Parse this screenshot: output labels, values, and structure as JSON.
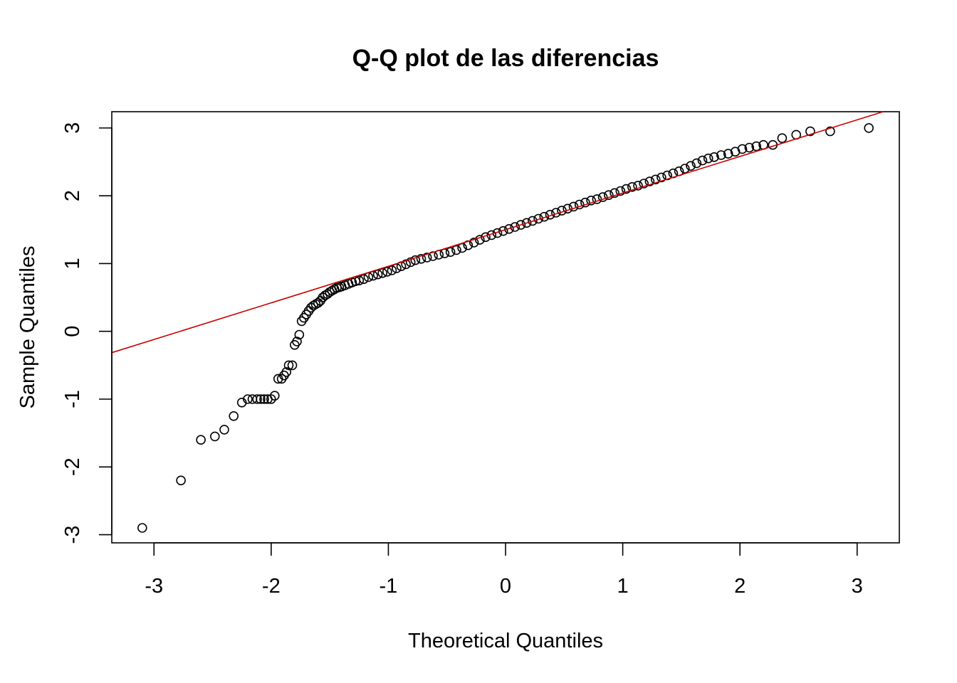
{
  "chart_data": {
    "type": "scatter",
    "title": "Q-Q plot de las diferencias",
    "xlabel": "Theoretical Quantiles",
    "ylabel": "Sample Quantiles",
    "xlim": [
      -3.36,
      3.36
    ],
    "ylim": [
      -3.12,
      3.24
    ],
    "xticks": [
      -3,
      -2,
      -1,
      0,
      1,
      2,
      3
    ],
    "xtick_labels": [
      "-3",
      "-2",
      "-1",
      "0",
      "1",
      "2",
      "3"
    ],
    "yticks": [
      -3,
      -2,
      -1,
      0,
      1,
      2,
      3
    ],
    "ytick_labels": [
      "-3",
      "-2",
      "-1",
      "0",
      "1",
      "2",
      "3"
    ],
    "grid": false,
    "point_color": "#000000",
    "line_color": "#cc0000",
    "reference_line": {
      "intercept": 1.5,
      "slope": 0.54
    },
    "points": [
      [
        -3.1,
        -2.9
      ],
      [
        -2.77,
        -2.2
      ],
      [
        -2.6,
        -1.6
      ],
      [
        -2.48,
        -1.55
      ],
      [
        -2.4,
        -1.45
      ],
      [
        -2.32,
        -1.25
      ],
      [
        -2.25,
        -1.05
      ],
      [
        -2.2,
        -1.0
      ],
      [
        -2.16,
        -1.0
      ],
      [
        -2.12,
        -1.0
      ],
      [
        -2.09,
        -1.0
      ],
      [
        -2.06,
        -1.0
      ],
      [
        -2.03,
        -1.0
      ],
      [
        -2.0,
        -1.0
      ],
      [
        -1.97,
        -0.95
      ],
      [
        -1.94,
        -0.7
      ],
      [
        -1.91,
        -0.7
      ],
      [
        -1.89,
        -0.65
      ],
      [
        -1.87,
        -0.6
      ],
      [
        -1.85,
        -0.5
      ],
      [
        -1.82,
        -0.5
      ],
      [
        -1.8,
        -0.2
      ],
      [
        -1.78,
        -0.15
      ],
      [
        -1.76,
        -0.05
      ],
      [
        -1.74,
        0.15
      ],
      [
        -1.72,
        0.2
      ],
      [
        -1.7,
        0.25
      ],
      [
        -1.68,
        0.3
      ],
      [
        -1.66,
        0.35
      ],
      [
        -1.64,
        0.38
      ],
      [
        -1.62,
        0.4
      ],
      [
        -1.6,
        0.42
      ],
      [
        -1.58,
        0.45
      ],
      [
        -1.56,
        0.5
      ],
      [
        -1.54,
        0.53
      ],
      [
        -1.52,
        0.55
      ],
      [
        -1.5,
        0.58
      ],
      [
        -1.48,
        0.6
      ],
      [
        -1.46,
        0.62
      ],
      [
        -1.44,
        0.64
      ],
      [
        -1.42,
        0.65
      ],
      [
        -1.4,
        0.66
      ],
      [
        -1.37,
        0.68
      ],
      [
        -1.34,
        0.7
      ],
      [
        -1.31,
        0.72
      ],
      [
        -1.28,
        0.74
      ],
      [
        -1.25,
        0.75
      ],
      [
        -1.21,
        0.77
      ],
      [
        -1.17,
        0.8
      ],
      [
        -1.13,
        0.82
      ],
      [
        -1.09,
        0.84
      ],
      [
        -1.05,
        0.86
      ],
      [
        -1.01,
        0.88
      ],
      [
        -0.97,
        0.9
      ],
      [
        -0.93,
        0.93
      ],
      [
        -0.89,
        0.96
      ],
      [
        -0.85,
        0.99
      ],
      [
        -0.81,
        1.02
      ],
      [
        -0.77,
        1.05
      ],
      [
        -0.72,
        1.07
      ],
      [
        -0.67,
        1.09
      ],
      [
        -0.62,
        1.11
      ],
      [
        -0.57,
        1.13
      ],
      [
        -0.52,
        1.15
      ],
      [
        -0.47,
        1.17
      ],
      [
        -0.42,
        1.2
      ],
      [
        -0.37,
        1.23
      ],
      [
        -0.32,
        1.27
      ],
      [
        -0.27,
        1.31
      ],
      [
        -0.22,
        1.35
      ],
      [
        -0.17,
        1.39
      ],
      [
        -0.12,
        1.42
      ],
      [
        -0.07,
        1.45
      ],
      [
        -0.02,
        1.48
      ],
      [
        0.03,
        1.51
      ],
      [
        0.08,
        1.54
      ],
      [
        0.13,
        1.57
      ],
      [
        0.18,
        1.6
      ],
      [
        0.23,
        1.63
      ],
      [
        0.28,
        1.66
      ],
      [
        0.33,
        1.69
      ],
      [
        0.38,
        1.72
      ],
      [
        0.43,
        1.75
      ],
      [
        0.48,
        1.78
      ],
      [
        0.53,
        1.81
      ],
      [
        0.58,
        1.84
      ],
      [
        0.63,
        1.87
      ],
      [
        0.68,
        1.9
      ],
      [
        0.73,
        1.93
      ],
      [
        0.78,
        1.95
      ],
      [
        0.83,
        1.98
      ],
      [
        0.88,
        2.01
      ],
      [
        0.93,
        2.04
      ],
      [
        0.98,
        2.07
      ],
      [
        1.03,
        2.1
      ],
      [
        1.08,
        2.13
      ],
      [
        1.13,
        2.15
      ],
      [
        1.18,
        2.18
      ],
      [
        1.23,
        2.21
      ],
      [
        1.28,
        2.24
      ],
      [
        1.33,
        2.27
      ],
      [
        1.38,
        2.3
      ],
      [
        1.43,
        2.33
      ],
      [
        1.48,
        2.36
      ],
      [
        1.53,
        2.4
      ],
      [
        1.58,
        2.44
      ],
      [
        1.63,
        2.48
      ],
      [
        1.68,
        2.52
      ],
      [
        1.73,
        2.55
      ],
      [
        1.78,
        2.57
      ],
      [
        1.84,
        2.6
      ],
      [
        1.9,
        2.62
      ],
      [
        1.96,
        2.65
      ],
      [
        2.02,
        2.69
      ],
      [
        2.08,
        2.71
      ],
      [
        2.14,
        2.73
      ],
      [
        2.2,
        2.75
      ],
      [
        2.28,
        2.75
      ],
      [
        2.36,
        2.85
      ],
      [
        2.48,
        2.9
      ],
      [
        2.6,
        2.95
      ],
      [
        2.77,
        2.95
      ],
      [
        3.1,
        3.0
      ]
    ]
  }
}
